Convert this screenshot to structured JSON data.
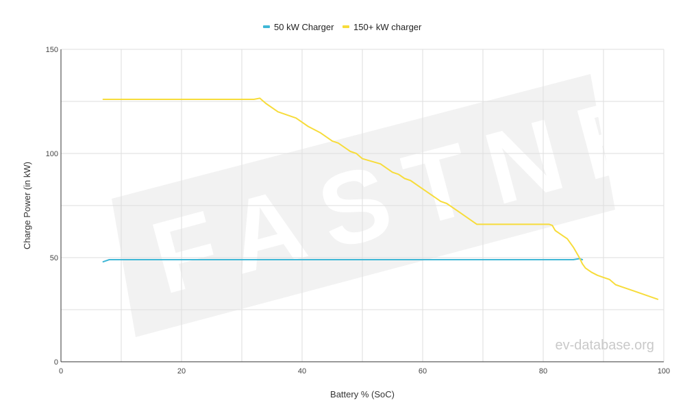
{
  "chart_data": {
    "type": "line",
    "xlabel": "Battery % (SoC)",
    "ylabel": "Charge Power (in kW)",
    "xlim": [
      0,
      100
    ],
    "ylim": [
      0,
      150
    ],
    "x_ticks": [
      0,
      20,
      40,
      60,
      80,
      100
    ],
    "y_ticks": [
      0,
      50,
      100,
      150
    ],
    "x_ticks_text": [
      "0",
      "20",
      "40",
      "60",
      "80",
      "100"
    ],
    "y_ticks_text": [
      "0",
      "50",
      "100",
      "150"
    ],
    "grid": true,
    "legend_position": "top-center",
    "series": [
      {
        "name": "50 kW Charger",
        "color": "#3fb7d6",
        "points": [
          [
            7,
            48
          ],
          [
            8,
            49
          ],
          [
            9,
            49
          ],
          [
            20,
            49
          ],
          [
            40,
            49
          ],
          [
            60,
            49
          ],
          [
            80,
            49
          ],
          [
            85,
            49
          ],
          [
            86,
            49.5
          ],
          [
            86.5,
            49
          ]
        ]
      },
      {
        "name": "150+ kW charger",
        "color": "#f7dc3a",
        "points": [
          [
            7,
            126
          ],
          [
            20,
            126
          ],
          [
            30,
            126
          ],
          [
            32,
            126
          ],
          [
            33,
            126.5
          ],
          [
            34,
            124
          ],
          [
            36,
            120
          ],
          [
            39,
            117
          ],
          [
            41,
            113
          ],
          [
            43,
            110
          ],
          [
            45,
            106
          ],
          [
            46,
            105
          ],
          [
            48,
            101
          ],
          [
            49,
            100
          ],
          [
            50,
            97.5
          ],
          [
            53,
            95
          ],
          [
            55,
            91
          ],
          [
            56,
            90
          ],
          [
            57,
            88
          ],
          [
            58,
            87
          ],
          [
            60,
            83
          ],
          [
            62,
            79
          ],
          [
            63,
            77
          ],
          [
            64,
            76
          ],
          [
            66,
            72
          ],
          [
            68,
            68
          ],
          [
            69,
            66
          ],
          [
            70,
            66
          ],
          [
            75,
            66
          ],
          [
            80,
            66
          ],
          [
            81,
            66
          ],
          [
            81.5,
            65.5
          ],
          [
            82,
            63
          ],
          [
            83,
            61
          ],
          [
            84,
            59
          ],
          [
            85,
            55
          ],
          [
            86,
            50
          ],
          [
            86.5,
            47
          ],
          [
            87,
            45
          ],
          [
            88,
            43
          ],
          [
            89,
            41.5
          ],
          [
            90,
            40.5
          ],
          [
            91,
            39.5
          ],
          [
            92,
            37
          ],
          [
            93,
            36
          ],
          [
            95,
            34
          ],
          [
            97,
            32
          ],
          [
            99,
            30
          ]
        ]
      }
    ]
  },
  "watermark": {
    "logo_text": "FASTNED",
    "site_text": "ev-database.org"
  },
  "colors": {
    "grid": "#dedede",
    "axis": "#333333",
    "watermark_bg": "#f2f2f2"
  }
}
